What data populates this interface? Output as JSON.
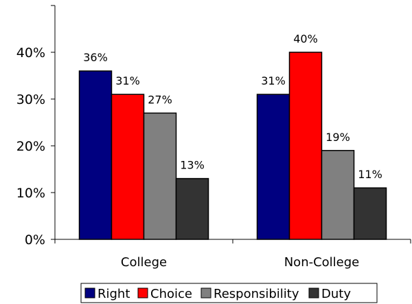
{
  "chart_data": {
    "type": "bar",
    "categories": [
      "College",
      "Non-College"
    ],
    "series": [
      {
        "name": "Right",
        "color": "#000080",
        "values": [
          36,
          31
        ],
        "labels": [
          "36%",
          "31%"
        ]
      },
      {
        "name": "Choice",
        "color": "#ff0000",
        "values": [
          31,
          40
        ],
        "labels": [
          "31%",
          "40%"
        ]
      },
      {
        "name": "Responsibility",
        "color": "#808080",
        "values": [
          27,
          19
        ],
        "labels": [
          "27%",
          "19%"
        ]
      },
      {
        "name": "Duty",
        "color": "#333333",
        "values": [
          13,
          11
        ],
        "labels": [
          "13%",
          "11%"
        ]
      }
    ],
    "y_ticks": [
      {
        "value": 0,
        "label": "0%"
      },
      {
        "value": 10,
        "label": "10%"
      },
      {
        "value": 20,
        "label": "20%"
      },
      {
        "value": 30,
        "label": "30%"
      },
      {
        "value": 40,
        "label": "40%"
      }
    ],
    "ylim": [
      0,
      50
    ],
    "grid": false,
    "legend_position": "bottom"
  }
}
